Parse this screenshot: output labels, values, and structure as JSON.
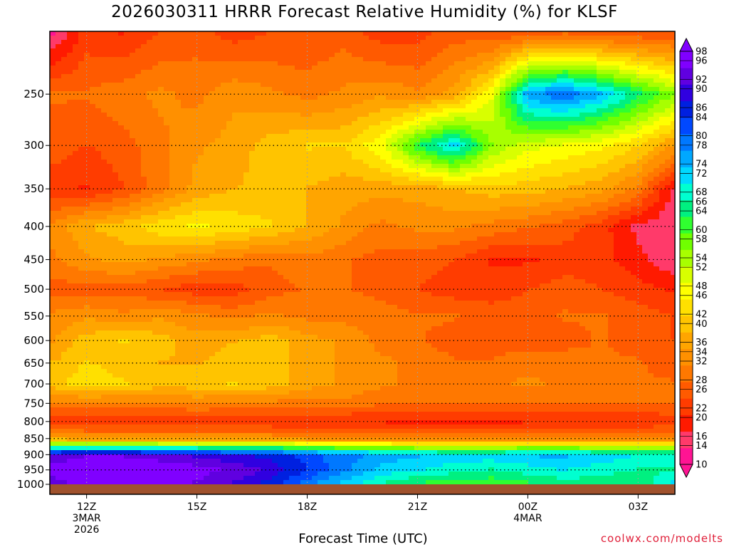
{
  "title": "2026030311 HRRR Forecast Relative Humidity (%) for KLSF",
  "credit": "coolwx.com/modelts",
  "colors": {
    "ground": "#a0522d",
    "bands": [
      "#ff1493",
      "#ff3a6a",
      "#ff1a00",
      "#ff3c00",
      "#ff5a00",
      "#ff7800",
      "#ff9000",
      "#ffa500",
      "#ffc400",
      "#ffe000",
      "#ffff00",
      "#d8ff00",
      "#a8ff00",
      "#70ff00",
      "#30ff30",
      "#00f080",
      "#00ffd0",
      "#00d8ff",
      "#00a8ff",
      "#0078ff",
      "#0048ff",
      "#0020e0",
      "#3000e0",
      "#6000e0",
      "#8000ff"
    ]
  },
  "chart_data": {
    "type": "heatmap",
    "title": "2026030311 HRRR Forecast Relative Humidity (%) for KLSF",
    "xlabel": "Forecast Time (UTC)",
    "ylabel": "",
    "x_hours": [
      11,
      12,
      13,
      14,
      15,
      16,
      17,
      18,
      19,
      20,
      21,
      22,
      23,
      24,
      25,
      26,
      27,
      28
    ],
    "xlim": [
      11,
      28
    ],
    "x_ticks": [
      {
        "hour": 12,
        "lines": [
          "12Z",
          "3MAR",
          "2026"
        ]
      },
      {
        "hour": 15,
        "lines": [
          "15Z"
        ]
      },
      {
        "hour": 18,
        "lines": [
          "18Z"
        ]
      },
      {
        "hour": 21,
        "lines": [
          "21Z"
        ]
      },
      {
        "hour": 24,
        "lines": [
          "00Z",
          "4MAR"
        ]
      },
      {
        "hour": 27,
        "lines": [
          "03Z"
        ]
      }
    ],
    "y_levels": [
      200,
      250,
      300,
      350,
      400,
      450,
      500,
      550,
      600,
      650,
      700,
      750,
      800,
      850,
      900,
      950,
      1000
    ],
    "y_ticks": [
      "250",
      "300",
      "350",
      "400",
      "450",
      "500",
      "550",
      "600",
      "650",
      "700",
      "750",
      "800",
      "850",
      "900",
      "950",
      "1000"
    ],
    "y_scale": "log-pressure",
    "ylim": [
      1000,
      200
    ],
    "grid": true,
    "colorbar": {
      "levels": [
        "10",
        "14",
        "16",
        "20",
        "22",
        "26",
        "28",
        "32",
        "34",
        "36",
        "40",
        "42",
        "46",
        "48",
        "52",
        "54",
        "58",
        "60",
        "64",
        "66",
        "68",
        "72",
        "74",
        "78",
        "80",
        "84",
        "86",
        "90",
        "92",
        "96",
        "98"
      ],
      "range": [
        10,
        98
      ]
    },
    "values": [
      [
        12,
        22,
        20,
        24,
        26,
        22,
        24,
        24,
        26,
        22,
        22,
        26,
        24,
        24,
        26,
        24,
        24,
        24
      ],
      [
        28,
        28,
        30,
        32,
        30,
        34,
        32,
        30,
        32,
        34,
        32,
        36,
        48,
        76,
        80,
        74,
        64,
        56
      ],
      [
        26,
        24,
        26,
        30,
        34,
        36,
        40,
        42,
        42,
        48,
        62,
        72,
        56,
        50,
        48,
        46,
        42,
        34
      ],
      [
        22,
        20,
        24,
        30,
        36,
        38,
        40,
        38,
        36,
        36,
        36,
        38,
        40,
        40,
        38,
        36,
        30,
        16
      ],
      [
        32,
        38,
        40,
        44,
        46,
        44,
        42,
        38,
        34,
        30,
        32,
        32,
        30,
        28,
        26,
        22,
        16,
        14
      ],
      [
        30,
        34,
        36,
        34,
        32,
        30,
        28,
        30,
        28,
        26,
        26,
        24,
        20,
        20,
        22,
        22,
        18,
        14
      ],
      [
        26,
        26,
        26,
        24,
        22,
        22,
        26,
        28,
        28,
        26,
        24,
        22,
        22,
        24,
        26,
        24,
        22,
        20
      ],
      [
        32,
        34,
        32,
        34,
        32,
        30,
        32,
        30,
        30,
        30,
        28,
        28,
        26,
        26,
        28,
        28,
        26,
        24
      ],
      [
        34,
        40,
        42,
        40,
        36,
        38,
        40,
        36,
        34,
        30,
        28,
        26,
        26,
        26,
        26,
        28,
        26,
        24
      ],
      [
        38,
        42,
        40,
        38,
        38,
        40,
        40,
        36,
        34,
        32,
        30,
        28,
        28,
        30,
        30,
        28,
        28,
        26
      ],
      [
        40,
        44,
        42,
        40,
        40,
        42,
        40,
        36,
        34,
        32,
        30,
        30,
        30,
        32,
        30,
        30,
        28,
        28
      ],
      [
        30,
        30,
        30,
        30,
        32,
        30,
        30,
        30,
        30,
        28,
        28,
        28,
        28,
        28,
        28,
        28,
        28,
        28
      ],
      [
        22,
        20,
        20,
        20,
        20,
        20,
        20,
        20,
        20,
        20,
        20,
        20,
        20,
        20,
        20,
        20,
        20,
        22
      ],
      [
        36,
        34,
        34,
        34,
        34,
        34,
        34,
        32,
        32,
        32,
        30,
        30,
        30,
        32,
        32,
        32,
        32,
        32
      ],
      [
        92,
        94,
        94,
        92,
        90,
        88,
        86,
        82,
        78,
        76,
        74,
        72,
        72,
        74,
        74,
        72,
        70,
        70
      ],
      [
        96,
        98,
        98,
        98,
        96,
        94,
        90,
        84,
        78,
        72,
        70,
        68,
        66,
        68,
        70,
        68,
        66,
        66
      ],
      [
        92,
        96,
        96,
        96,
        94,
        90,
        86,
        78,
        72,
        66,
        62,
        60,
        60,
        62,
        64,
        64,
        62,
        72
      ]
    ]
  }
}
